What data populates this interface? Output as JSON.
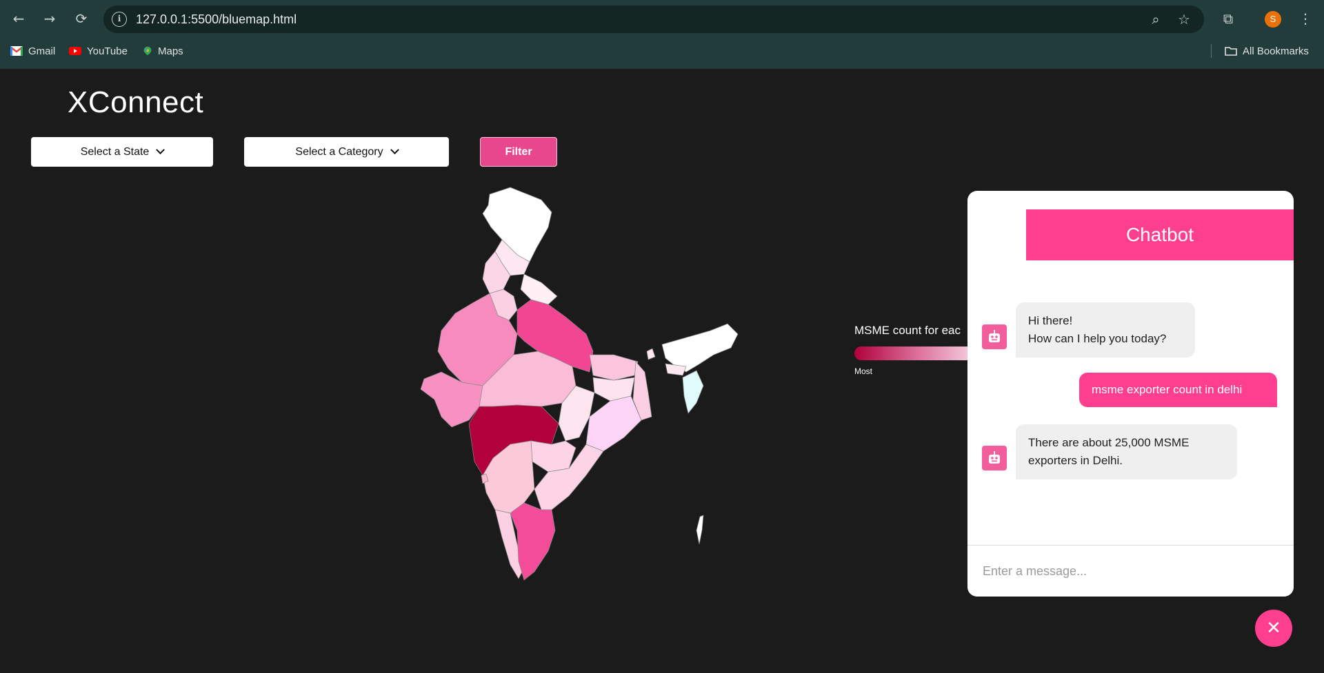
{
  "browser": {
    "url": "127.0.0.1:5500/bluemap.html",
    "profile_initial": "S",
    "bookmarks": [
      {
        "label": "Gmail",
        "icon": "gmail-icon"
      },
      {
        "label": "YouTube",
        "icon": "youtube-icon"
      },
      {
        "label": "Maps",
        "icon": "maps-icon"
      }
    ],
    "all_bookmarks": "All Bookmarks"
  },
  "app": {
    "title": "XConnect",
    "state_select": "Select a State",
    "category_select": "Select a Category",
    "filter_label": "Filter"
  },
  "legend": {
    "title": "MSME count for eac",
    "min_label": "Most",
    "colors": [
      "#b0003a",
      "#e07aa3",
      "#f3c8da"
    ]
  },
  "chat": {
    "title": "Chatbot",
    "messages": [
      {
        "from": "bot",
        "lines": [
          "Hi there!",
          "How can I help you today?"
        ]
      },
      {
        "from": "user",
        "lines": [
          "msme exporter count in delhi"
        ]
      },
      {
        "from": "bot",
        "lines": [
          "There are about 25,000 MSME",
          "exporters in Delhi."
        ]
      }
    ],
    "placeholder": "Enter a message...",
    "close_symbol": "✕"
  },
  "colors": {
    "accent": "#fe3e8f",
    "filter": "#e8478e",
    "background": "#1b1b1b",
    "chrome": "#213c3a"
  }
}
